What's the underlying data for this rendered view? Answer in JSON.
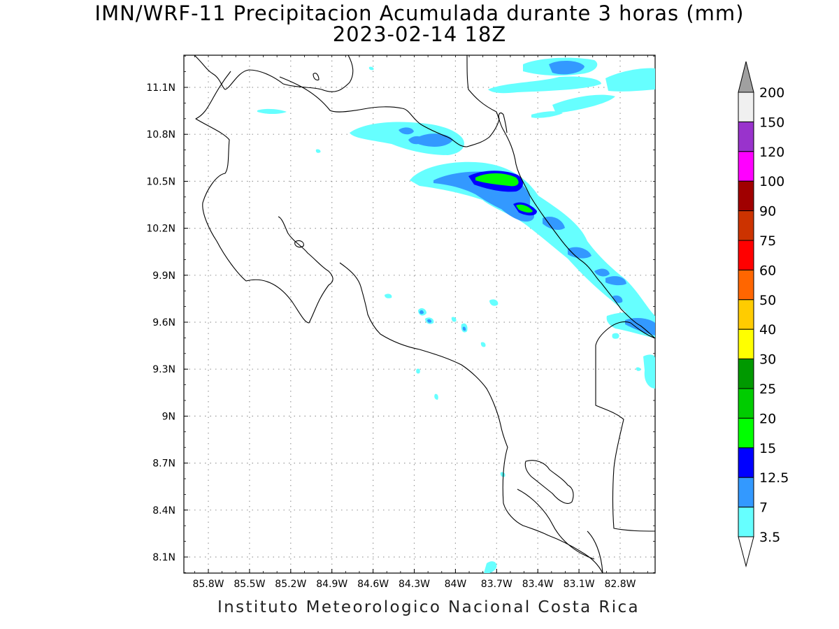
{
  "header": {
    "title": "IMN/WRF-11 Precipitacion Acumulada durante 3 horas (mm)",
    "subtitle": "2023-02-14 18Z"
  },
  "footer": {
    "credit": "Instituto Meteorologico Nacional Costa Rica"
  },
  "map": {
    "lon_range": [
      -86.0,
      -83.0
    ],
    "lat_range": [
      8.0,
      11.3
    ],
    "grid": true,
    "lon_ticks": [
      "85.8W",
      "85.5W",
      "85.2W",
      "84.9W",
      "84.6W",
      "84.3W",
      "84W",
      "83.7W",
      "83.4W",
      "83.1W",
      "82.8W"
    ],
    "lat_ticks": [
      "11.1N",
      "10.8N",
      "10.5N",
      "10.2N",
      "9.9N",
      "9.6N",
      "9.3N",
      "9N",
      "8.7N",
      "8.4N",
      "8.1N"
    ]
  },
  "legend": {
    "levels": [
      {
        "label": "200",
        "color": "#a0a0a0"
      },
      {
        "label": "150",
        "color": "#f0f0f0"
      },
      {
        "label": "120",
        "color": "#9933cc"
      },
      {
        "label": "100",
        "color": "#ff00ff"
      },
      {
        "label": "90",
        "color": "#a00000"
      },
      {
        "label": "75",
        "color": "#cc3300"
      },
      {
        "label": "60",
        "color": "#ff0000"
      },
      {
        "label": "50",
        "color": "#ff6600"
      },
      {
        "label": "40",
        "color": "#ffcc00"
      },
      {
        "label": "30",
        "color": "#ffff00"
      },
      {
        "label": "25",
        "color": "#009900"
      },
      {
        "label": "20",
        "color": "#00cc00"
      },
      {
        "label": "15",
        "color": "#00ff00"
      },
      {
        "label": "12.5",
        "color": "#0000ff"
      },
      {
        "label": "7",
        "color": "#3399ff"
      },
      {
        "label": "3.5",
        "color": "#66ffff"
      }
    ]
  }
}
